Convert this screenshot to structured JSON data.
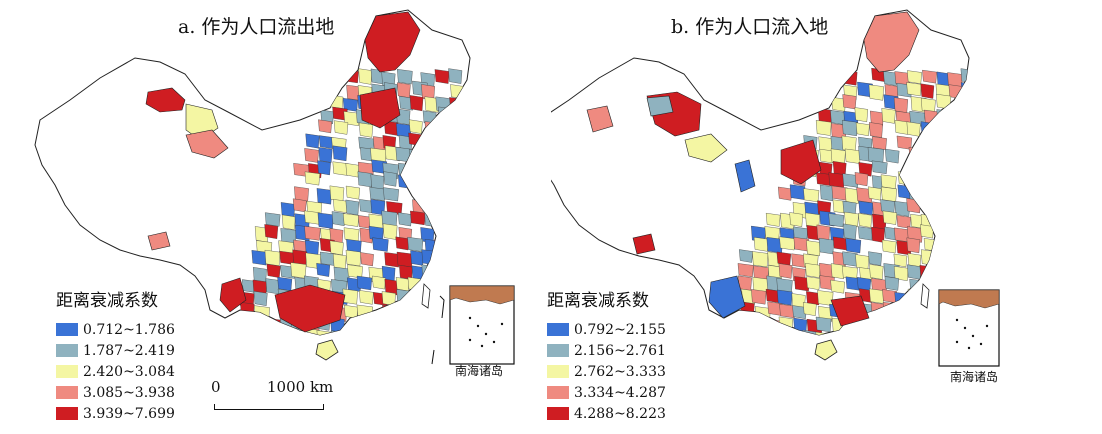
{
  "colors": {
    "class1": "#3a73d6",
    "class2": "#8fb2bf",
    "class3": "#f4f6a3",
    "class4": "#ef8a80",
    "class5": "#cf1d22",
    "nodata": "#ffffff",
    "border": "#222222"
  },
  "panels": [
    {
      "title": "a. 作为人口流出地",
      "legend_title": "距离衰减系数",
      "legend": [
        {
          "range": "0.712~1.786",
          "color": "#3a73d6"
        },
        {
          "range": "1.787~2.419",
          "color": "#8fb2bf"
        },
        {
          "range": "2.420~3.084",
          "color": "#f4f6a3"
        },
        {
          "range": "3.085~3.938",
          "color": "#ef8a80"
        },
        {
          "range": "3.939~7.699",
          "color": "#cf1d22"
        }
      ],
      "inset_label": "南海诸岛",
      "scale": {
        "zero": "0",
        "label": "1000 km"
      }
    },
    {
      "title": "b. 作为人口流入地",
      "legend_title": "距离衰减系数",
      "legend": [
        {
          "range": "0.792~2.155",
          "color": "#3a73d6"
        },
        {
          "range": "2.156~2.761",
          "color": "#8fb2bf"
        },
        {
          "range": "2.762~3.333",
          "color": "#f4f6a3"
        },
        {
          "range": "3.334~4.287",
          "color": "#ef8a80"
        },
        {
          "range": "4.288~8.223",
          "color": "#cf1d22"
        }
      ],
      "inset_label": "南海诸岛"
    }
  ]
}
